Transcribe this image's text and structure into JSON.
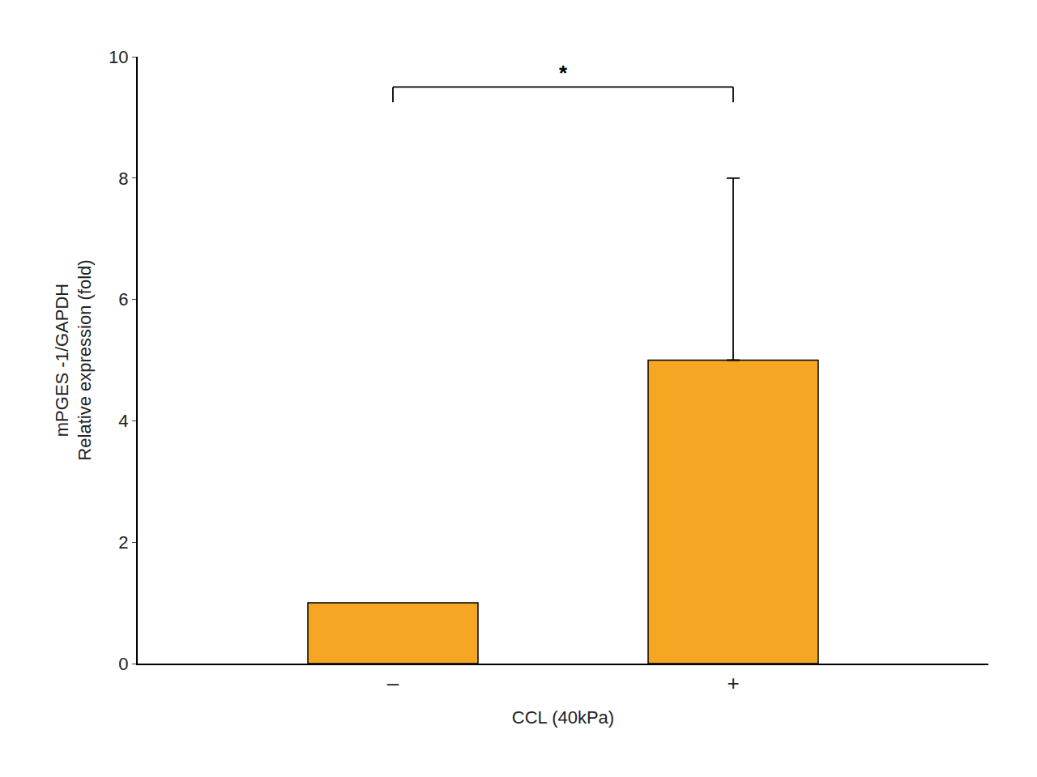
{
  "chart_data": {
    "type": "bar",
    "categories": [
      "–",
      "+"
    ],
    "values": [
      1.0,
      5.0
    ],
    "error_plus": [
      null,
      3.0
    ],
    "color": "#F5A623",
    "xlabel": "CCL (40kPa)",
    "ylabel": "mPGES -1/GAPDH\nRelative expression (fold)",
    "ylim": [
      0,
      10
    ],
    "yticks": [
      0,
      2,
      4,
      6,
      8,
      10
    ],
    "grid": false,
    "annotations": [
      {
        "text": "*",
        "from": "–",
        "to": "+",
        "y": 9.5
      }
    ]
  }
}
